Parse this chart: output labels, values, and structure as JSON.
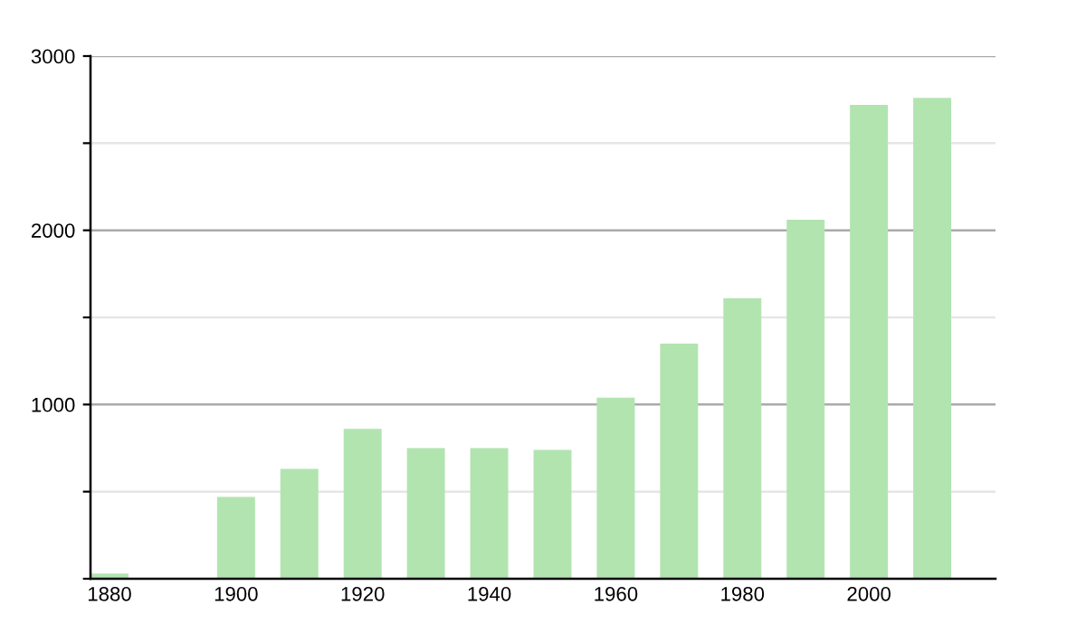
{
  "chart_data": {
    "type": "bar",
    "x": [
      1880,
      1900,
      1910,
      1920,
      1930,
      1940,
      1950,
      1960,
      1970,
      1980,
      1990,
      2000,
      2010
    ],
    "values": [
      30,
      470,
      630,
      860,
      750,
      750,
      740,
      1040,
      1350,
      1610,
      2060,
      2720,
      2760
    ],
    "color": "#b2e4b0",
    "xlim": [
      1877,
      2020
    ],
    "xticks": [
      1880,
      1900,
      1920,
      1940,
      1960,
      1980,
      2000
    ],
    "ylim": [
      0,
      3000
    ],
    "yticks": [
      {
        "value": 0,
        "label": null
      },
      {
        "value": 500,
        "label": null
      },
      1000,
      {
        "value": 1500,
        "label": null
      },
      2000,
      {
        "value": 2500,
        "label": null
      },
      3000
    ],
    "grid": "y",
    "legend": false
  }
}
